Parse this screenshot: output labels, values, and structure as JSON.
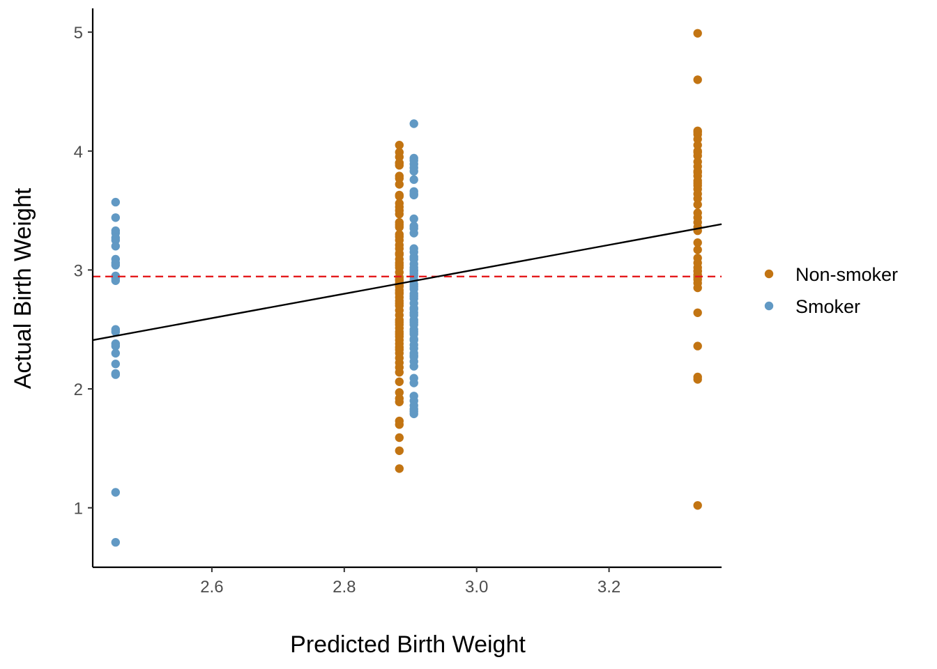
{
  "chart_data": {
    "type": "scatter",
    "title": "",
    "xlabel": "Predicted Birth Weight",
    "ylabel": "Actual Birth Weight",
    "xlim": [
      2.42,
      3.37
    ],
    "ylim": [
      0.5,
      5.2
    ],
    "x_ticks": [
      2.6,
      2.8,
      3.0,
      3.2
    ],
    "x_tick_labels": [
      "2.6",
      "2.8",
      "3.0",
      "3.2"
    ],
    "y_ticks": [
      1,
      2,
      3,
      4,
      5
    ],
    "y_tick_labels": [
      "1",
      "2",
      "3",
      "4",
      "5"
    ],
    "grid": false,
    "legend_position": "right",
    "series": [
      {
        "name": "Non-smoker",
        "color": "#C27412",
        "x": [
          2.8832,
          2.8832,
          2.8832,
          2.8832,
          2.8832,
          2.8832,
          2.8832,
          2.8832,
          2.8832,
          2.8832,
          2.8832,
          2.8832,
          2.8832,
          2.8832,
          2.8832,
          2.8832,
          2.8832,
          2.8832,
          2.8832,
          2.8832,
          2.8832,
          2.8832,
          2.8832,
          2.8832,
          2.8832,
          2.8832,
          2.8832,
          2.8832,
          2.8832,
          2.8832,
          2.8832,
          2.8832,
          2.8832,
          2.8832,
          2.8832,
          2.8832,
          2.8832,
          2.8832,
          2.8832,
          2.8832,
          2.8832,
          2.8832,
          2.8832,
          2.8832,
          2.8832,
          2.8832,
          2.8832,
          2.8832,
          2.8832,
          2.8832,
          2.8832,
          2.8832,
          2.8832,
          2.8832,
          2.8832,
          2.8832,
          2.8832,
          2.8832,
          2.8832,
          2.8832,
          2.8832,
          2.8832,
          2.8832,
          2.8832,
          2.8832,
          2.8832,
          2.8832,
          2.8832,
          2.8832,
          2.8832,
          3.3339,
          3.3339,
          3.3339,
          3.3339,
          3.3339,
          3.3339,
          3.3339,
          3.3339,
          3.3339,
          3.3339,
          3.3339,
          3.3339,
          3.3339,
          3.3339,
          3.3339,
          3.3339,
          3.3339,
          3.3339,
          3.3339,
          3.3339,
          3.3339,
          3.3339,
          3.3339,
          3.3339,
          3.3339,
          3.3339,
          3.3339,
          3.3339,
          3.3339,
          3.3339,
          3.3339,
          3.3339,
          3.3339,
          3.3339,
          3.3339,
          3.3339,
          3.3339,
          3.3339,
          3.3339,
          3.3339,
          3.3339,
          3.3339,
          3.3339,
          3.3339
        ],
        "y": [
          4.05,
          3.99,
          3.95,
          3.9,
          3.88,
          3.79,
          3.77,
          3.63,
          3.56,
          3.53,
          3.47,
          3.4,
          3.36,
          3.3,
          3.28,
          3.25,
          3.21,
          3.18,
          3.13,
          3.09,
          3.06,
          3.02,
          2.98,
          2.94,
          2.92,
          2.89,
          2.86,
          2.83,
          2.8,
          2.77,
          2.74,
          2.7,
          2.66,
          2.62,
          2.58,
          2.54,
          2.51,
          2.48,
          2.44,
          2.41,
          2.38,
          2.35,
          2.3,
          2.26,
          2.22,
          2.18,
          2.06,
          1.97,
          1.92,
          1.89,
          1.73,
          1.7,
          1.59,
          1.48,
          1.33,
          3.9,
          3.72,
          3.62,
          3.5,
          3.38,
          3.14,
          3.04,
          2.91,
          2.87,
          2.81,
          2.72,
          2.56,
          2.46,
          2.33,
          2.14,
          4.99,
          4.6,
          4.17,
          4.14,
          4.1,
          4.05,
          4.0,
          3.96,
          3.91,
          3.87,
          3.83,
          3.79,
          3.75,
          3.71,
          3.68,
          3.64,
          3.6,
          3.55,
          3.48,
          3.44,
          3.4,
          3.33,
          3.23,
          3.1,
          3.06,
          3.02,
          2.99,
          2.96,
          2.92,
          2.89,
          2.85,
          2.64,
          2.36,
          2.1,
          2.08,
          1.02,
          3.82,
          3.73,
          3.36,
          3.17,
          2.99,
          2.94,
          4.16,
          3.99
        ]
      },
      {
        "name": "Smoker",
        "color": "#6199C4",
        "x": [
          2.4545,
          2.4545,
          2.4545,
          2.4545,
          2.4545,
          2.4545,
          2.4545,
          2.4545,
          2.4545,
          2.4545,
          2.4545,
          2.4545,
          2.4545,
          2.4545,
          2.4545,
          2.4545,
          2.4545,
          2.4545,
          2.4545,
          2.4545,
          2.4545,
          2.4545,
          2.4545,
          2.9052,
          2.9052,
          2.9052,
          2.9052,
          2.9052,
          2.9052,
          2.9052,
          2.9052,
          2.9052,
          2.9052,
          2.9052,
          2.9052,
          2.9052,
          2.9052,
          2.9052,
          2.9052,
          2.9052,
          2.9052,
          2.9052,
          2.9052,
          2.9052,
          2.9052,
          2.9052,
          2.9052,
          2.9052,
          2.9052,
          2.9052,
          2.9052,
          2.9052,
          2.9052,
          2.9052,
          2.9052,
          2.9052,
          2.9052,
          2.9052,
          2.9052,
          2.9052,
          2.9052,
          2.9052,
          2.9052,
          2.9052,
          2.9052,
          2.9052,
          2.9052,
          2.9052,
          2.9052,
          2.9052,
          2.9052,
          2.9052,
          2.9052,
          2.9052,
          2.9052,
          2.9052,
          2.9052,
          2.9052,
          2.9052,
          2.9052,
          2.9052,
          2.9052
        ],
        "y": [
          3.57,
          3.44,
          3.33,
          3.31,
          3.27,
          3.25,
          3.2,
          3.09,
          3.06,
          3.04,
          2.95,
          2.93,
          2.91,
          2.5,
          2.48,
          2.38,
          2.36,
          2.3,
          2.21,
          2.13,
          2.12,
          1.13,
          0.71,
          4.23,
          3.94,
          3.89,
          3.86,
          3.83,
          3.76,
          3.66,
          3.63,
          3.43,
          3.37,
          3.31,
          3.15,
          3.11,
          3.05,
          3.02,
          2.99,
          2.95,
          2.92,
          2.88,
          2.84,
          2.8,
          2.76,
          2.67,
          2.62,
          2.58,
          2.54,
          2.5,
          2.46,
          2.42,
          2.37,
          2.34,
          2.3,
          2.23,
          2.19,
          2.09,
          1.94,
          1.9,
          1.83,
          1.79,
          3.92,
          3.64,
          3.09,
          2.97,
          2.78,
          2.64,
          2.48,
          2.28,
          1.86,
          3.35,
          3.18,
          2.86,
          2.72,
          2.56,
          2.41,
          2.27,
          2.05,
          1.81,
          3.0,
          2.68
        ]
      }
    ],
    "reference_lines": [
      {
        "kind": "horizontal",
        "y": 2.945,
        "color": "#E41A1C",
        "style": "dashed"
      },
      {
        "kind": "fit",
        "x": [
          2.42,
          3.37
        ],
        "y": [
          2.41,
          3.385
        ],
        "color": "#000000",
        "style": "solid"
      }
    ]
  }
}
